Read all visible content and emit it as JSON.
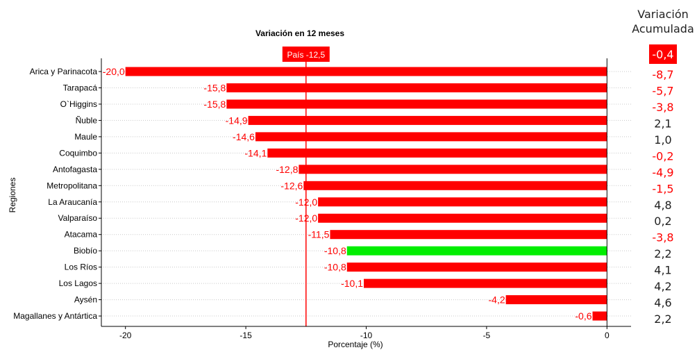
{
  "chart_data": {
    "type": "bar",
    "orientation": "horizontal",
    "title": "Variación en 12 meses",
    "xlabel": "Porcentaje (%)",
    "ylabel": "Regiones",
    "xlim": [
      -21,
      1
    ],
    "xticks": [
      -20,
      -15,
      -10,
      -5,
      0
    ],
    "xtick_labels": [
      "-20",
      "-15",
      "-10",
      "-5",
      "0"
    ],
    "grid": "horizontal dotted",
    "reference_line": {
      "label": "País -12,5",
      "value": -12.5
    },
    "categories": [
      "Arica y Parinacota",
      "Tarapacá",
      "O`Higgins",
      "Ñuble",
      "Maule",
      "Coquimbo",
      "Antofagasta",
      "Metropolitana",
      "La Araucanía",
      "Valparaíso",
      "Atacama",
      "Biobío",
      "Los Ríos",
      "Los Lagos",
      "Aysén",
      "Magallanes y Antártica"
    ],
    "values": [
      -20.0,
      -15.8,
      -15.8,
      -14.9,
      -14.6,
      -14.1,
      -12.8,
      -12.6,
      -12.0,
      -12.0,
      -11.5,
      -10.8,
      -10.8,
      -10.1,
      -4.2,
      -0.6
    ],
    "value_labels": [
      "-20,0",
      "-15,8",
      "-15,8",
      "-14,9",
      "-14,6",
      "-14,1",
      "-12,8",
      "-12,6",
      "-12,0",
      "-12,0",
      "-11,5",
      "-10,8",
      "-10,8",
      "-10,1",
      "-4,2",
      "-0,6"
    ],
    "highlight_category": "Biobío",
    "colors": {
      "bar": "#ff0000",
      "highlight": "#00ee00",
      "label": "#ff0000",
      "reference": "#ff0000"
    },
    "side_table": {
      "header": [
        "Variación",
        "Acumulada"
      ],
      "country_value": "-0,4",
      "values": [
        "-8,7",
        "-5,7",
        "-3,8",
        "2,1",
        "1,0",
        "-0,2",
        "-4,9",
        "-1,5",
        "4,8",
        "0,2",
        "-3,8",
        "2,2",
        "4,1",
        "4,2",
        "4,6",
        "2,2"
      ]
    }
  }
}
